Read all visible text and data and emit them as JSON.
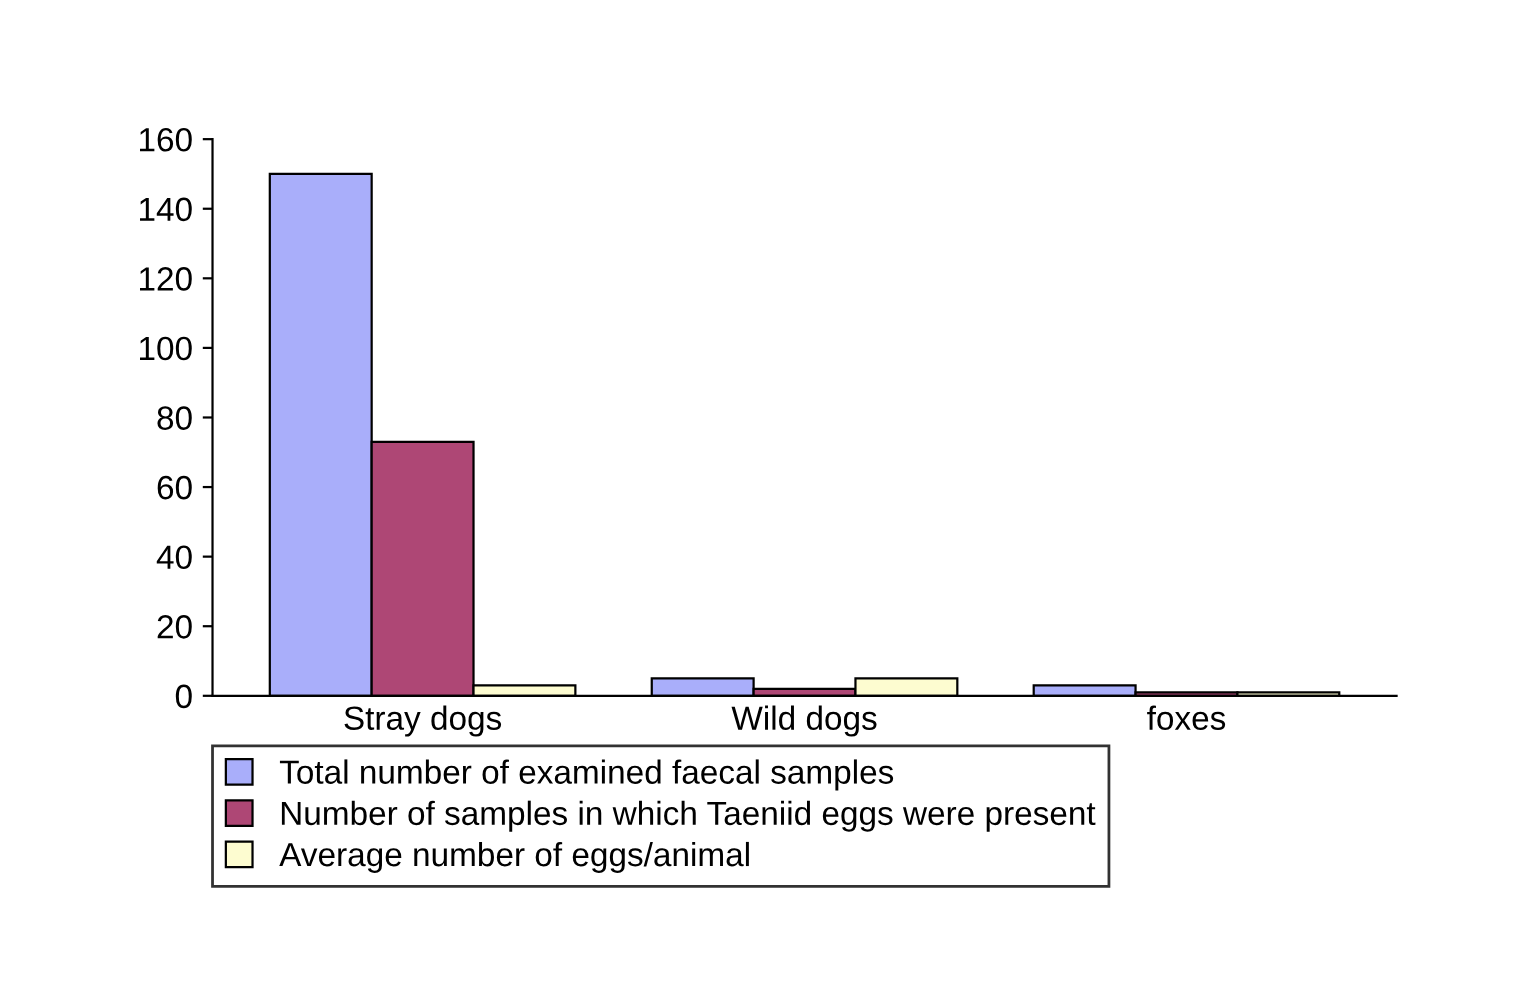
{
  "chart_data": {
    "type": "bar",
    "categories": [
      "Stray dogs",
      "Wild dogs",
      "foxes"
    ],
    "series": [
      {
        "name": "Total number of examined faecal samples",
        "color": "#a9aefa",
        "values": [
          150,
          5,
          3
        ]
      },
      {
        "name": "Number of samples in which Taeniid eggs were present",
        "color": "#ae4775",
        "values": [
          73,
          2,
          1
        ]
      },
      {
        "name": "Average number of eggs/animal",
        "color": "#fdfcd0",
        "values": [
          3,
          5,
          1
        ]
      }
    ],
    "ylim": [
      0,
      160
    ],
    "yticks": [
      0,
      20,
      40,
      60,
      80,
      100,
      120,
      140,
      160
    ],
    "grid": false,
    "legend": "bottom"
  }
}
